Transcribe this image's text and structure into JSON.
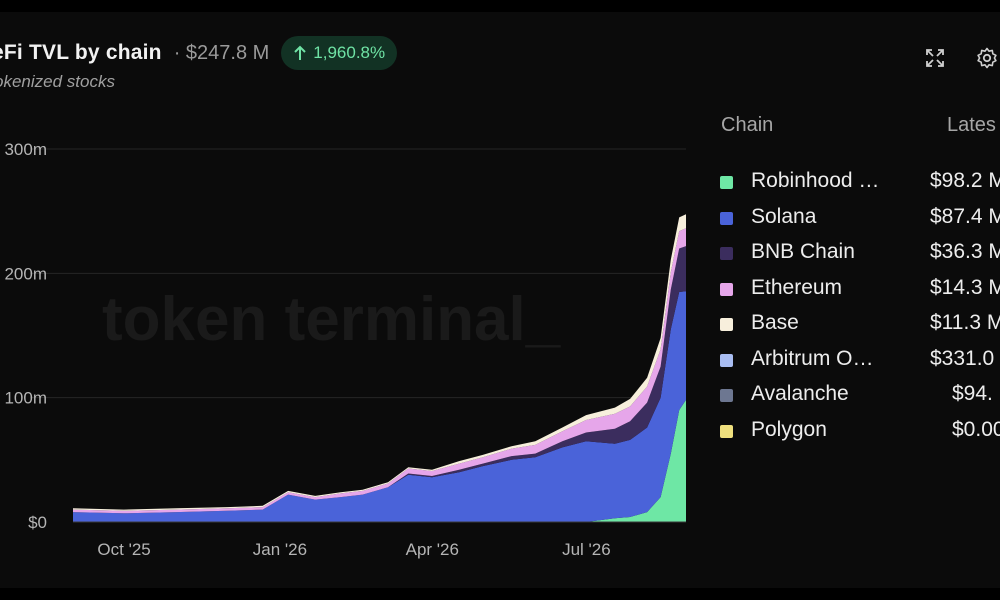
{
  "header": {
    "title": "eFi TVL by chain",
    "total": "· $247.8 M",
    "change": "1,960.8%",
    "subtitle": "okenized stocks"
  },
  "watermark": "token terminal_",
  "legend": {
    "col_chain": "Chain",
    "col_latest": "Lates",
    "items": [
      {
        "name": "Robinhood …",
        "value": "$98.2 M",
        "color": "#6ee7a5"
      },
      {
        "name": "Solana",
        "value": "$87.4 M",
        "color": "#4a63d9"
      },
      {
        "name": "BNB Chain",
        "value": "$36.3 M",
        "color": "#3b2d5e"
      },
      {
        "name": "Ethereum",
        "value": "$14.3 M",
        "color": "#e6a6ea"
      },
      {
        "name": "Base",
        "value": "$11.3 M",
        "color": "#f7efdc"
      },
      {
        "name": "Arbitrum O…",
        "value": "$331.0",
        "color": "#a9bdf2"
      },
      {
        "name": "Avalanche",
        "value": "$94.",
        "color": "#6d7791"
      },
      {
        "name": "Polygon",
        "value": "$0.00",
        "color": "#efe07e"
      }
    ]
  },
  "icons": [
    "expand-icon",
    "gear-icon",
    "arrow-up-icon"
  ],
  "chart_data": {
    "type": "area",
    "stacked": true,
    "title": "eFi TVL by chain",
    "subtitle": "okenized stocks",
    "x_ticks": [
      "Oct '25",
      "Jan '26",
      "Apr '26",
      "Jul '26"
    ],
    "y_ticks": [
      "$0",
      "100m",
      "200m",
      "300m"
    ],
    "ylim": [
      0,
      300
    ],
    "y_unit": "millions USD",
    "grid": true,
    "legend_position": "right",
    "x": [
      "2025-09-15",
      "2025-10-15",
      "2025-11-15",
      "2025-12-15",
      "2026-01-05",
      "2026-01-20",
      "2026-02-05",
      "2026-02-20",
      "2026-03-05",
      "2026-03-20",
      "2026-04-01",
      "2026-04-15",
      "2026-05-01",
      "2026-05-15",
      "2026-06-01",
      "2026-06-15",
      "2026-07-01",
      "2026-07-15",
      "2026-08-01",
      "2026-08-10",
      "2026-08-20",
      "2026-08-28",
      "2026-09-03",
      "2026-09-08",
      "2026-09-12"
    ],
    "series": [
      {
        "name": "Robinhood …",
        "color": "#6ee7a5",
        "values": [
          0,
          0,
          0,
          0,
          0,
          0,
          0,
          0,
          0,
          0,
          0,
          0,
          0,
          0,
          0,
          0,
          0,
          0,
          3,
          4,
          8,
          20,
          55,
          90,
          98.2
        ]
      },
      {
        "name": "Solana",
        "color": "#4a63d9",
        "values": [
          8,
          7,
          8,
          9,
          10,
          22,
          18,
          20,
          22,
          28,
          38,
          36,
          40,
          45,
          50,
          52,
          60,
          65,
          60,
          62,
          68,
          80,
          100,
          95,
          87.4
        ]
      },
      {
        "name": "BNB Chain",
        "color": "#3b2d5e",
        "values": [
          0,
          0,
          0,
          0,
          0,
          0,
          0,
          0,
          0,
          0,
          1,
          1,
          2,
          2,
          3,
          3,
          5,
          7,
          12,
          15,
          20,
          25,
          32,
          35,
          36.3
        ]
      },
      {
        "name": "Ethereum",
        "color": "#e6a6ea",
        "values": [
          2,
          2,
          2,
          2,
          2,
          2,
          2,
          3,
          3,
          3,
          4,
          4,
          5,
          5,
          6,
          7,
          8,
          10,
          12,
          12,
          13,
          14,
          14,
          14,
          14.3
        ]
      },
      {
        "name": "Base",
        "color": "#f7efdc",
        "values": [
          1,
          1,
          1,
          1,
          1,
          1,
          1,
          1,
          1,
          1,
          1,
          1,
          2,
          2,
          2,
          3,
          3,
          4,
          5,
          6,
          7,
          9,
          10,
          11,
          11.3
        ]
      },
      {
        "name": "Arbitrum O…",
        "color": "#a9bdf2",
        "values": [
          0,
          0,
          0,
          0,
          0,
          0,
          0,
          0,
          0,
          0,
          0,
          0,
          0,
          0,
          0,
          0,
          0,
          0,
          0,
          0,
          0,
          0,
          0,
          0,
          0.0003
        ]
      },
      {
        "name": "Avalanche",
        "color": "#6d7791",
        "values": [
          0,
          0,
          0,
          0,
          0,
          0,
          0,
          0,
          0,
          0,
          0,
          0,
          0,
          0,
          0,
          0,
          0,
          0,
          0,
          0,
          0,
          0,
          0,
          0,
          0.0001
        ]
      },
      {
        "name": "Polygon",
        "color": "#efe07e",
        "values": [
          0,
          0,
          0,
          0,
          0,
          0,
          0,
          0,
          0,
          0,
          0,
          0,
          0,
          0,
          0,
          0,
          0,
          0,
          0,
          0,
          0,
          0,
          0,
          0,
          0
        ]
      }
    ]
  }
}
